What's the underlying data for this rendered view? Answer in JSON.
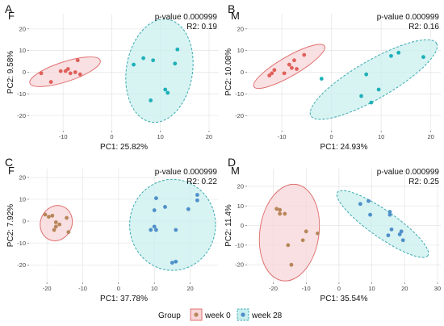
{
  "figure": {
    "legend": {
      "title": "Group",
      "items": [
        {
          "label": "week 0",
          "color": "#b8865a",
          "fill": "#f7d6d8",
          "border": "#e07070",
          "dashed": false
        },
        {
          "label": "week 28",
          "color": "#4f8fc9",
          "fill": "#c9efee",
          "border": "#3aaab0",
          "dashed": true
        }
      ]
    }
  },
  "chart_data": [
    {
      "type": "scatter",
      "panel": "A",
      "title": "F",
      "pvalue_label": "p-value 0.000999",
      "r2_label": "R2: 0.19",
      "xlabel": "PC1: 25.82%",
      "ylabel": "PC2: 9.58%",
      "xlim": [
        -17,
        22
      ],
      "ylim": [
        -27,
        27
      ],
      "xticks": [
        -10,
        0,
        10,
        20
      ],
      "yticks": [
        -20,
        -10,
        0,
        10,
        20
      ],
      "point_colors": [
        "#e0605a",
        "#1eb0b8"
      ],
      "series": [
        {
          "name": "week 0",
          "points": [
            [
              -14.5,
              -0.5
            ],
            [
              -12.5,
              -4.5
            ],
            [
              -10.5,
              0.5
            ],
            [
              -9.5,
              0.5
            ],
            [
              -9,
              1.5
            ],
            [
              -8.5,
              -0.5
            ],
            [
              -7.5,
              0
            ],
            [
              -7,
              5.5
            ],
            [
              -6.5,
              -1
            ]
          ]
        },
        {
          "name": "week 28",
          "points": [
            [
              4.5,
              3.5
            ],
            [
              6.5,
              6.5
            ],
            [
              8.5,
              5.5
            ],
            [
              8,
              -13
            ],
            [
              11,
              -8
            ],
            [
              11.5,
              -9.5
            ],
            [
              13,
              4
            ],
            [
              13.5,
              10.5
            ]
          ]
        }
      ],
      "ellipses": [
        {
          "cx": -9.6,
          "cy": 0.2,
          "rx": 7.6,
          "ry": 4.6,
          "rot": 18
        },
        {
          "cx": 9.8,
          "cy": 0.7,
          "rx": 6.8,
          "ry": 24.0,
          "rot": -9
        }
      ]
    },
    {
      "type": "scatter",
      "panel": "B",
      "title": "M",
      "pvalue_label": "p-value 0.000999",
      "r2_label": "R2: 0.16",
      "xlabel": "PC1: 24.93%",
      "ylabel": "PC2: 10.08%",
      "xlim": [
        -17,
        22
      ],
      "ylim": [
        -27,
        27
      ],
      "xticks": [
        -10,
        0,
        10,
        20
      ],
      "yticks": [
        -20,
        -10,
        0,
        10,
        20
      ],
      "point_colors": [
        "#e0605a",
        "#1eb0b8"
      ],
      "series": [
        {
          "name": "week 0",
          "points": [
            [
              -12.5,
              -1.5
            ],
            [
              -11.5,
              1
            ],
            [
              -12,
              -0.5
            ],
            [
              -9.5,
              -0.5
            ],
            [
              -8.5,
              3.5
            ],
            [
              -8,
              2
            ],
            [
              -7.5,
              5.5
            ],
            [
              -5.5,
              8
            ],
            [
              -7,
              1.5
            ]
          ]
        },
        {
          "name": "week 28",
          "points": [
            [
              -2,
              -3
            ],
            [
              7,
              -1
            ],
            [
              6,
              -11
            ],
            [
              8,
              -14
            ],
            [
              9.5,
              -8
            ],
            [
              12,
              7.5
            ],
            [
              13.5,
              9
            ],
            [
              18.5,
              7
            ]
          ]
        }
      ],
      "ellipses": [
        {
          "cx": -8.5,
          "cy": 2.7,
          "rx": 8.2,
          "ry": 4.5,
          "rot": 30
        },
        {
          "cx": 8.5,
          "cy": -3.4,
          "rx": 14.6,
          "ry": 8.8,
          "rot": 30
        }
      ]
    },
    {
      "type": "scatter",
      "panel": "C",
      "title": "F",
      "pvalue_label": "p-value 0.000999",
      "r2_label": "R2: 0.22",
      "xlabel": "PC1: 37.78%",
      "ylabel": "PC2: 7.92%",
      "xlim": [
        -25,
        28
      ],
      "ylim": [
        -28,
        24
      ],
      "xticks": [
        -20,
        -10,
        0,
        10,
        20
      ],
      "yticks": [
        -20,
        -10,
        0,
        10,
        20
      ],
      "point_colors": [
        "#b8865a",
        "#4f8fc9"
      ],
      "series": [
        {
          "name": "week 0",
          "points": [
            [
              -20.5,
              3
            ],
            [
              -19.5,
              2
            ],
            [
              -18.5,
              2.5
            ],
            [
              -17.5,
              -0.5
            ],
            [
              -17.5,
              -2.5
            ],
            [
              -18,
              -4
            ],
            [
              -16.5,
              -1.5
            ],
            [
              -14.5,
              1.5
            ],
            [
              -14,
              -5
            ]
          ]
        },
        {
          "name": "week 28",
          "points": [
            [
              10,
              5
            ],
            [
              10.5,
              10.5
            ],
            [
              13,
              6.5
            ],
            [
              10,
              -2.5
            ],
            [
              10.5,
              -4
            ],
            [
              9,
              -4
            ],
            [
              16,
              -4
            ],
            [
              16,
              -18.5
            ],
            [
              15,
              -19
            ],
            [
              19.5,
              5.5
            ],
            [
              22,
              9.5
            ],
            [
              22,
              12
            ]
          ]
        }
      ],
      "ellipses": [
        {
          "cx": -17.4,
          "cy": -0.9,
          "rx": 4.4,
          "ry": 8.2,
          "rot": -22
        },
        {
          "cx": 15.1,
          "cy": -1.7,
          "rx": 12.0,
          "ry": 20.8,
          "rot": 0
        }
      ]
    },
    {
      "type": "scatter",
      "panel": "D",
      "title": "M",
      "pvalue_label": "p-value 0.000999",
      "r2_label": "R2: 0.25",
      "xlabel": "PC1: 35.54%",
      "ylabel": "PC2: 11.4%",
      "xlim": [
        -28,
        31
      ],
      "ylim": [
        -29,
        29
      ],
      "xticks": [
        -20,
        -10,
        0,
        10,
        20,
        30
      ],
      "yticks": [
        -20,
        -10,
        0,
        10,
        20
      ],
      "point_colors": [
        "#b8865a",
        "#4f8fc9"
      ],
      "series": [
        {
          "name": "week 0",
          "points": [
            [
              -19,
              8.5
            ],
            [
              -18,
              8
            ],
            [
              -18,
              6
            ],
            [
              -16.5,
              6
            ],
            [
              -15.5,
              -10
            ],
            [
              -14.5,
              -20
            ],
            [
              -11,
              -7.5
            ],
            [
              -10,
              -3
            ],
            [
              -6.5,
              -4
            ]
          ]
        },
        {
          "name": "week 28",
          "points": [
            [
              6.5,
              11
            ],
            [
              9,
              12.5
            ],
            [
              9.5,
              5.5
            ],
            [
              15.5,
              5.5
            ],
            [
              15.5,
              7
            ],
            [
              16,
              -2
            ],
            [
              15,
              -5
            ],
            [
              18.5,
              -4.5
            ],
            [
              19.5,
              -7.5
            ],
            [
              19,
              -3
            ]
          ]
        }
      ],
      "ellipses": [
        {
          "cx": -15.1,
          "cy": -3.6,
          "rx": 9.0,
          "ry": 24.8,
          "rot": -8
        },
        {
          "cx": 13.3,
          "cy": 0.8,
          "rx": 16.8,
          "ry": 6.8,
          "rot": -35
        }
      ]
    }
  ]
}
